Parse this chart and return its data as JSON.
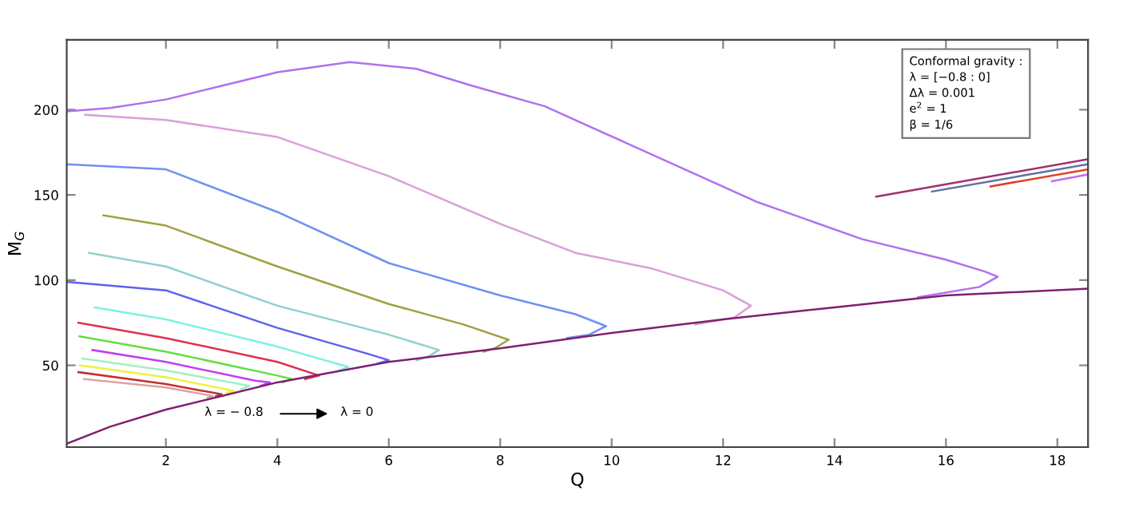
{
  "chart_data": {
    "type": "line",
    "xlabel": "Q",
    "ylabel": "M$_{G}$",
    "xlim": [
      0.22,
      18.55
    ],
    "ylim": [
      2,
      241
    ],
    "xticks": [
      2,
      4,
      6,
      8,
      10,
      12,
      14,
      16,
      18
    ],
    "yticks": [
      50,
      100,
      150,
      200
    ],
    "grid": false,
    "marker": "none",
    "line_style": "solid",
    "annotations": [
      "λ = − 0.8",
      "λ = 0",
      "Conformal gravity :\nλ = [−0.8 : 0]\nΔλ = 0.001\ne$^{2}$ = 1\nβ = 1/6"
    ],
    "series": [
      {
        "color": "#b070f0",
        "x": [
          0.22,
          1,
          2,
          3,
          4,
          5.3,
          6.5,
          7.5,
          8.8,
          10.7,
          12.6,
          14.5,
          16,
          16.7,
          16.93,
          16.6,
          15.5
        ],
        "values": [
          199,
          201,
          206,
          214,
          222,
          228,
          224,
          214,
          202,
          174,
          146,
          124,
          112,
          105,
          102,
          96,
          90
        ]
      },
      {
        "color": "#d8a0d8",
        "x": [
          0.55,
          2,
          4,
          6,
          8,
          9.35,
          10.7,
          12,
          12.5,
          12.2,
          11.5
        ],
        "values": [
          197,
          194,
          184,
          161,
          133,
          116,
          107,
          94,
          85,
          78,
          74
        ]
      },
      {
        "color": "#7090f0",
        "x": [
          0.22,
          2,
          4,
          6,
          8,
          9.35,
          9.9,
          9.6,
          9.2
        ],
        "values": [
          168,
          165,
          140,
          110,
          91,
          80,
          73,
          68,
          66
        ]
      },
      {
        "color": "#a0a040",
        "x": [
          0.88,
          2,
          4,
          6,
          7.34,
          8.15,
          7.9,
          7.7
        ],
        "values": [
          138,
          132,
          108,
          86,
          74,
          65,
          60,
          58
        ]
      },
      {
        "color": "#90d0d0",
        "x": [
          0.62,
          2,
          4,
          6,
          6.9,
          6.7,
          6.5
        ],
        "values": [
          116,
          108,
          85,
          68,
          59,
          55,
          53
        ]
      },
      {
        "color": "#6060f0",
        "x": [
          0.22,
          2,
          4,
          5.6,
          6,
          5.8
        ],
        "values": [
          99,
          94,
          72,
          57,
          53,
          51
        ]
      },
      {
        "color": "#80f0e0",
        "x": [
          0.72,
          2,
          4,
          5.28,
          5.1
        ],
        "values": [
          84,
          77,
          61,
          49,
          47
        ]
      },
      {
        "color": "#e03050",
        "x": [
          0.43,
          2,
          4,
          4.75,
          4.5
        ],
        "values": [
          75,
          66,
          52,
          44,
          42
        ]
      },
      {
        "color": "#60e040",
        "x": [
          0.45,
          2,
          4,
          4.26,
          4.1
        ],
        "values": [
          67,
          58,
          44,
          42,
          40
        ]
      },
      {
        "color": "#c040f0",
        "x": [
          0.68,
          2,
          3.6,
          3.87,
          3.7
        ],
        "values": [
          59,
          52,
          41,
          40,
          38
        ]
      },
      {
        "color": "#a0f0c0",
        "x": [
          0.5,
          2,
          3.5,
          3.35
        ],
        "values": [
          54,
          47,
          38,
          36
        ]
      },
      {
        "color": "#f0f040",
        "x": [
          0.45,
          2,
          3.22,
          3.1
        ],
        "values": [
          50,
          43,
          35,
          34
        ]
      },
      {
        "color": "#c03030",
        "x": [
          0.43,
          2,
          3.0,
          2.9
        ],
        "values": [
          46,
          39,
          33,
          32
        ]
      },
      {
        "color": "#e0a0a0",
        "x": [
          0.53,
          2,
          2.84,
          2.75
        ],
        "values": [
          42,
          37,
          32,
          31
        ]
      },
      {
        "color": "#802070",
        "x": [
          0.22,
          1,
          2,
          3,
          4,
          6,
          8,
          10,
          12,
          14,
          16,
          18.55
        ],
        "values": [
          4,
          14,
          24,
          32,
          40,
          52,
          60,
          69,
          77,
          84,
          91,
          95
        ]
      },
      {
        "color": "#a03070",
        "x": [
          14.75,
          18.55
        ],
        "values": [
          149,
          171
        ]
      },
      {
        "color": "#6070a0",
        "x": [
          15.75,
          18.55
        ],
        "values": [
          152,
          168
        ]
      },
      {
        "color": "#e04020",
        "x": [
          16.8,
          18.55
        ],
        "values": [
          155,
          165
        ]
      },
      {
        "color": "#c070f0",
        "x": [
          17.9,
          18.55
        ],
        "values": [
          158,
          162
        ]
      }
    ]
  }
}
